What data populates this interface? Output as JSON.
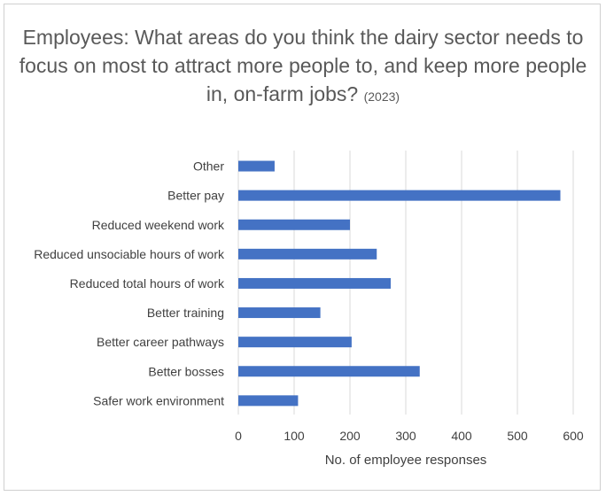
{
  "chart_data": {
    "type": "bar",
    "orientation": "horizontal",
    "title": "Employees: What areas do you think the dairy sector needs to focus on most to attract more people to, and keep more people in, on-farm jobs?",
    "subtitle": "(2023)",
    "xlabel": "No. of employee responses",
    "ylabel": "",
    "xlim": [
      0,
      600
    ],
    "xticks": [
      0,
      100,
      200,
      300,
      400,
      500,
      600
    ],
    "grid": true,
    "legend": "none",
    "bar_color": "#4472C4",
    "categories": [
      "Other",
      "Better pay",
      "Reduced weekend work",
      "Reduced unsociable hours of work",
      "Reduced total hours of work",
      "Better training",
      "Better career pathways",
      "Better bosses",
      "Safer work environment"
    ],
    "values": [
      65,
      577,
      200,
      248,
      273,
      147,
      203,
      325,
      107
    ]
  }
}
